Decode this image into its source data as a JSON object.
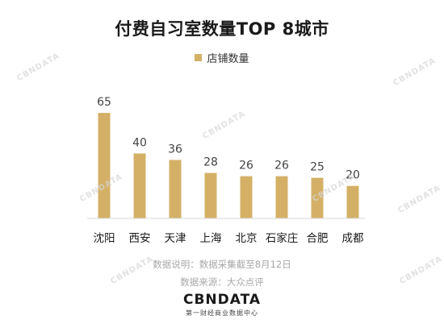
{
  "chart_data": {
    "type": "bar",
    "title": "付费自习室数量TOP 8城市",
    "legend": [
      "店铺数量"
    ],
    "categories": [
      "沈阳",
      "西安",
      "天津",
      "上海",
      "北京",
      "石家庄",
      "合肥",
      "成都"
    ],
    "series": [
      {
        "name": "店铺数量",
        "values": [
          65,
          40,
          36,
          28,
          26,
          26,
          25,
          20
        ]
      }
    ],
    "ylim": [
      0,
      70
    ],
    "grid": false,
    "legend_position": "top-center",
    "bar_color": "#d4b067"
  },
  "notes": {
    "explanation": "数据说明：数据采集截至8月12日",
    "source": "数据来源：大众点评"
  },
  "brand": {
    "logo": "CBNDATA",
    "subtitle": "第一财经商业数据中心"
  },
  "watermark": "CBNDATA"
}
